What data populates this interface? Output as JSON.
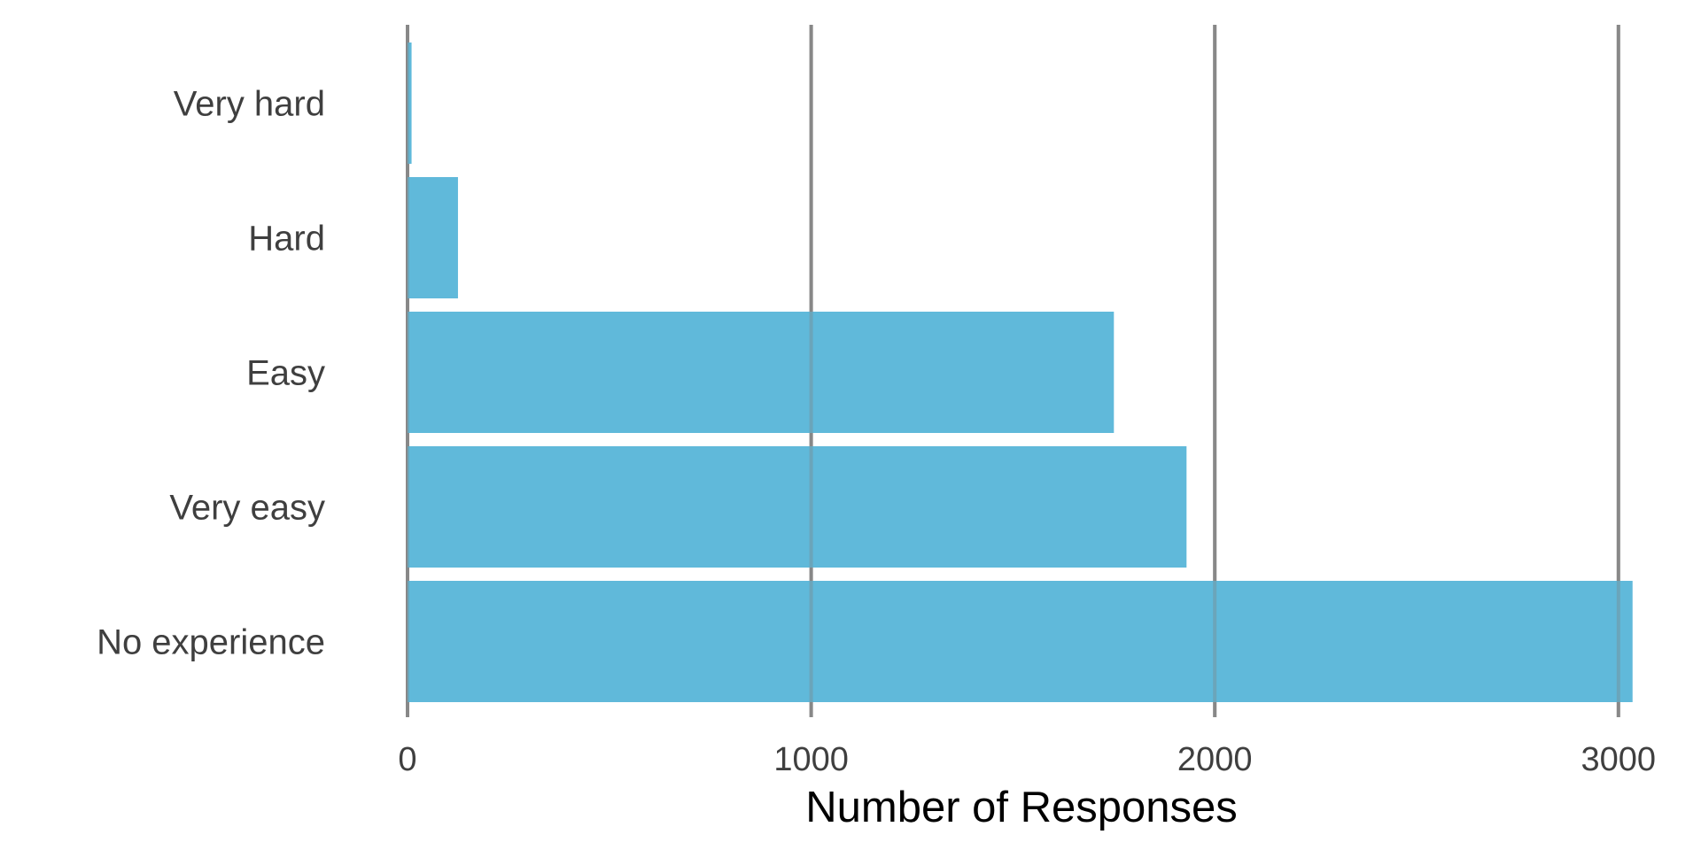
{
  "chart_data": {
    "type": "bar",
    "orientation": "horizontal",
    "title": "",
    "xlabel": "Number of Responses",
    "ylabel": "",
    "categories": [
      "Very hard",
      "Hard",
      "Easy",
      "Very easy",
      "No experience"
    ],
    "values": [
      10,
      125,
      1750,
      1930,
      3035
    ],
    "xlim": [
      0,
      3100
    ],
    "xticks": [
      0,
      1000,
      2000,
      3000
    ],
    "grid": "vertical",
    "legend": "none",
    "colors": {
      "bar": "#5bb7d9",
      "grid": "#888888",
      "text": "#3f3f3f",
      "axis_title": "#000000"
    }
  }
}
